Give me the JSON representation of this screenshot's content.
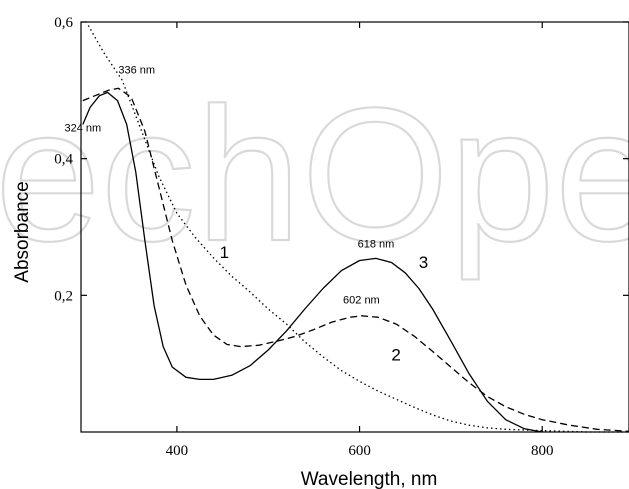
{
  "watermark": "echOpen",
  "chart_data": {
    "type": "line",
    "xlabel": "Wavelength, nm",
    "ylabel": "Absorbance",
    "xlim": [
      295,
      895
    ],
    "ylim": [
      0,
      0.6
    ],
    "xticks": [
      400,
      600,
      800
    ],
    "xtick_labels": [
      "400",
      "600",
      "800"
    ],
    "yticks": [
      0.2,
      0.4,
      0.6
    ],
    "ytick_labels": [
      "0,2",
      "0,4",
      "0,6"
    ],
    "grid": false,
    "series": [
      {
        "name": "1",
        "style": "dotted",
        "points": [
          [
            303,
            0.595
          ],
          [
            320,
            0.555
          ],
          [
            340,
            0.515
          ],
          [
            360,
            0.445
          ],
          [
            380,
            0.375
          ],
          [
            400,
            0.32
          ],
          [
            420,
            0.285
          ],
          [
            440,
            0.255
          ],
          [
            460,
            0.228
          ],
          [
            480,
            0.205
          ],
          [
            500,
            0.18
          ],
          [
            520,
            0.158
          ],
          [
            540,
            0.132
          ],
          [
            560,
            0.11
          ],
          [
            580,
            0.09
          ],
          [
            600,
            0.074
          ],
          [
            620,
            0.06
          ],
          [
            640,
            0.048
          ],
          [
            660,
            0.036
          ],
          [
            680,
            0.025
          ],
          [
            700,
            0.016
          ],
          [
            720,
            0.01
          ],
          [
            740,
            0.006
          ],
          [
            760,
            0.004
          ],
          [
            800,
            0.002
          ],
          [
            850,
            0.0
          ],
          [
            895,
            0.0
          ]
        ]
      },
      {
        "name": "2",
        "style": "dashed",
        "points": [
          [
            297,
            0.485
          ],
          [
            310,
            0.492
          ],
          [
            325,
            0.5
          ],
          [
            336,
            0.503
          ],
          [
            350,
            0.49
          ],
          [
            365,
            0.44
          ],
          [
            380,
            0.36
          ],
          [
            395,
            0.28
          ],
          [
            410,
            0.215
          ],
          [
            425,
            0.17
          ],
          [
            440,
            0.142
          ],
          [
            455,
            0.128
          ],
          [
            470,
            0.125
          ],
          [
            490,
            0.127
          ],
          [
            510,
            0.133
          ],
          [
            530,
            0.14
          ],
          [
            550,
            0.15
          ],
          [
            570,
            0.161
          ],
          [
            590,
            0.168
          ],
          [
            602,
            0.17
          ],
          [
            620,
            0.168
          ],
          [
            640,
            0.158
          ],
          [
            660,
            0.14
          ],
          [
            680,
            0.118
          ],
          [
            700,
            0.095
          ],
          [
            720,
            0.072
          ],
          [
            740,
            0.052
          ],
          [
            760,
            0.037
          ],
          [
            780,
            0.026
          ],
          [
            800,
            0.018
          ],
          [
            830,
            0.01
          ],
          [
            860,
            0.004
          ],
          [
            895,
            0.001
          ]
        ]
      },
      {
        "name": "3",
        "style": "solid",
        "points": [
          [
            297,
            0.45
          ],
          [
            305,
            0.475
          ],
          [
            315,
            0.492
          ],
          [
            324,
            0.497
          ],
          [
            335,
            0.485
          ],
          [
            345,
            0.45
          ],
          [
            355,
            0.38
          ],
          [
            365,
            0.28
          ],
          [
            375,
            0.185
          ],
          [
            385,
            0.125
          ],
          [
            395,
            0.095
          ],
          [
            410,
            0.08
          ],
          [
            425,
            0.077
          ],
          [
            440,
            0.077
          ],
          [
            460,
            0.083
          ],
          [
            480,
            0.097
          ],
          [
            500,
            0.12
          ],
          [
            520,
            0.148
          ],
          [
            540,
            0.18
          ],
          [
            560,
            0.21
          ],
          [
            580,
            0.236
          ],
          [
            600,
            0.251
          ],
          [
            618,
            0.254
          ],
          [
            635,
            0.248
          ],
          [
            650,
            0.233
          ],
          [
            665,
            0.21
          ],
          [
            680,
            0.18
          ],
          [
            700,
            0.133
          ],
          [
            720,
            0.085
          ],
          [
            740,
            0.045
          ],
          [
            760,
            0.018
          ],
          [
            780,
            0.005
          ],
          [
            800,
            0.0
          ]
        ]
      }
    ],
    "annotations": [
      {
        "text": "336 nm",
        "x": 356,
        "y": 0.525
      },
      {
        "text": "324 nm",
        "x": 297,
        "y": 0.44
      },
      {
        "text": "618 nm",
        "x": 618,
        "y": 0.27
      },
      {
        "text": "602 nm",
        "x": 602,
        "y": 0.188
      }
    ],
    "curve_labels": [
      {
        "text": "1",
        "x": 452,
        "y": 0.255
      },
      {
        "text": "2",
        "x": 640,
        "y": 0.105
      },
      {
        "text": "3",
        "x": 670,
        "y": 0.24
      }
    ]
  }
}
